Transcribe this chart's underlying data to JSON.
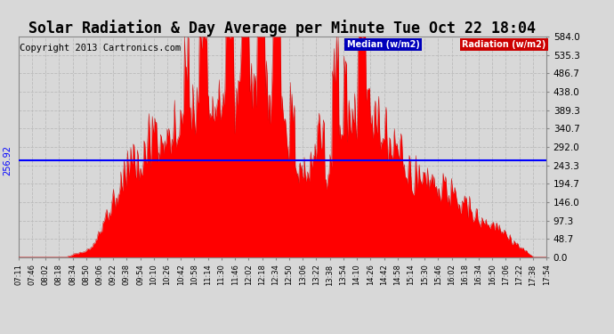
{
  "title": "Solar Radiation & Day Average per Minute Tue Oct 22 18:04",
  "copyright": "Copyright 2013 Cartronics.com",
  "ylabel_values": [
    0.0,
    48.7,
    97.3,
    146.0,
    194.7,
    243.3,
    292.0,
    340.7,
    389.3,
    438.0,
    486.7,
    535.3,
    584.0
  ],
  "median_value": 256.92,
  "ymax": 584.0,
  "ymin": 0.0,
  "fill_color": "#ff0000",
  "median_line_color": "#0000ff",
  "grid_color": "#bbbbbb",
  "background_color": "#d8d8d8",
  "title_fontsize": 12,
  "copyright_fontsize": 7.5,
  "tick_labels": [
    "07:11",
    "07:46",
    "08:02",
    "08:18",
    "08:34",
    "08:50",
    "09:06",
    "09:22",
    "09:38",
    "09:54",
    "10:10",
    "10:26",
    "10:42",
    "10:58",
    "11:14",
    "11:30",
    "11:46",
    "12:02",
    "12:18",
    "12:34",
    "12:50",
    "13:06",
    "13:22",
    "13:38",
    "13:54",
    "14:10",
    "14:26",
    "14:42",
    "14:58",
    "15:14",
    "15:30",
    "15:46",
    "16:02",
    "16:18",
    "16:34",
    "16:50",
    "17:06",
    "17:22",
    "17:38",
    "17:54"
  ]
}
